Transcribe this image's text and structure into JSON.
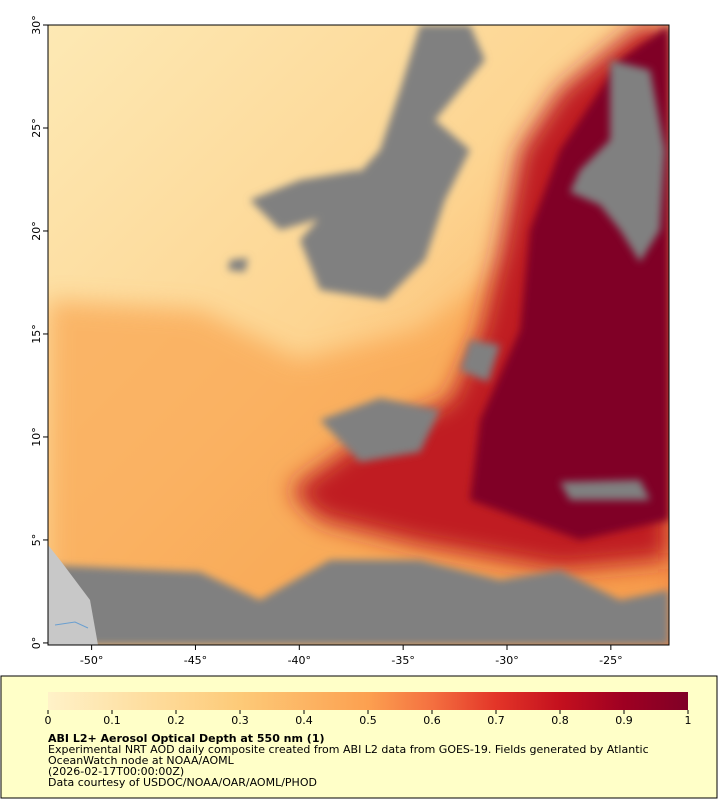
{
  "map": {
    "xlim": [
      -52.1,
      -22.2
    ],
    "ylim": [
      -0.1,
      30
    ],
    "xticks": [
      {
        "value": -50,
        "label": "-50°"
      },
      {
        "value": -45,
        "label": "-45°"
      },
      {
        "value": -40,
        "label": "-40°"
      },
      {
        "value": -35,
        "label": "-35°"
      },
      {
        "value": -30,
        "label": "-30°"
      },
      {
        "value": -25,
        "label": "-25°"
      }
    ],
    "yticks": [
      {
        "value": 0,
        "label": "0°"
      },
      {
        "value": 5,
        "label": "5°"
      },
      {
        "value": 10,
        "label": "10°"
      },
      {
        "value": 15,
        "label": "15°"
      },
      {
        "value": 20,
        "label": "20°"
      },
      {
        "value": 25,
        "label": "25°"
      },
      {
        "value": 30,
        "label": "30°"
      }
    ]
  },
  "colorbar": {
    "lim": [
      0,
      1
    ],
    "ticks": [
      0,
      0.1,
      0.2,
      0.3,
      0.4,
      0.5,
      0.6,
      0.7,
      0.8,
      0.9,
      1
    ]
  },
  "legend": {
    "title": "ABI L2+ Aerosol Optical Depth at 550 nm (1)",
    "lines": [
      "Experimental NRT AOD daily composite created from ABI L2 data from GOES-19. Fields generated by Atlantic",
      "OceanWatch node at NOAA/AOML",
      "(2026-02-17T00:00:00Z)",
      "Data courtesy of USDOC/NOAA/OAR/AOML/PHOD"
    ]
  }
}
